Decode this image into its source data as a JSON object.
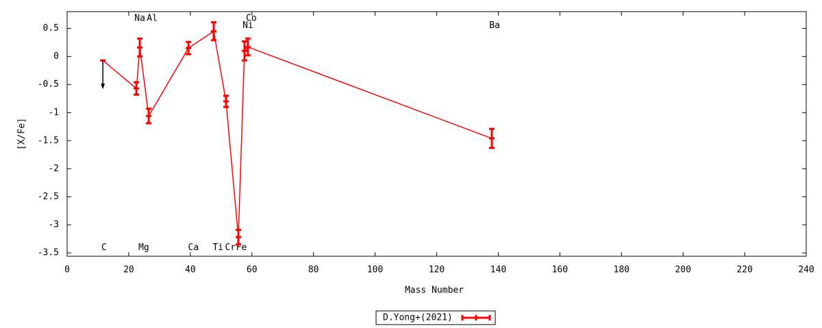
{
  "chart_data": {
    "type": "errorline",
    "xlabel": "Mass Number",
    "ylabel": "[X/Fe]",
    "xlim": [
      0,
      240
    ],
    "xticks": [
      0,
      20,
      40,
      60,
      80,
      100,
      120,
      140,
      160,
      180,
      200,
      220,
      240
    ],
    "ylim": [
      -3.56,
      0.8
    ],
    "yticks": [
      0.5,
      0,
      -0.5,
      -1,
      -1.5,
      -2,
      -2.5,
      -3,
      -3.5
    ],
    "series": [
      {
        "name": "D.Yong+(2021)",
        "color": "#ff0000",
        "x": [
          11.6,
          22.5,
          23.6,
          26.5,
          39.4,
          47.6,
          51.6,
          55.6,
          57.6,
          58.7,
          137.9
        ],
        "values": [
          -0.07,
          -0.57,
          0.16,
          -1.06,
          0.15,
          0.45,
          -0.8,
          -3.22,
          0.1,
          0.17,
          -1.46
        ],
        "errors": [
          null,
          0.11,
          0.16,
          0.13,
          0.11,
          0.16,
          0.1,
          0.13,
          0.17,
          0.15,
          0.17
        ],
        "upper_limits": [
          true,
          false,
          false,
          false,
          false,
          false,
          false,
          false,
          false,
          false,
          false
        ]
      }
    ],
    "annotations": [
      {
        "text": "Na",
        "x": 23.6,
        "y": 0.68
      },
      {
        "text": "Al",
        "x": 27.6,
        "y": 0.68
      },
      {
        "text": "Co",
        "x": 59.8,
        "y": 0.68
      },
      {
        "text": "Ni",
        "x": 58.7,
        "y": 0.55
      },
      {
        "text": "Ba",
        "x": 138.8,
        "y": 0.55
      },
      {
        "text": "C",
        "x": 12,
        "y": -3.41
      },
      {
        "text": "Mg",
        "x": 24.9,
        "y": -3.41
      },
      {
        "text": "Ca",
        "x": 41,
        "y": -3.41
      },
      {
        "text": "Ti",
        "x": 49,
        "y": -3.41
      },
      {
        "text": "Cr",
        "x": 53,
        "y": -3.41
      },
      {
        "text": "Fe",
        "x": 56.6,
        "y": -3.41
      }
    ],
    "legend": "bottom-center"
  }
}
